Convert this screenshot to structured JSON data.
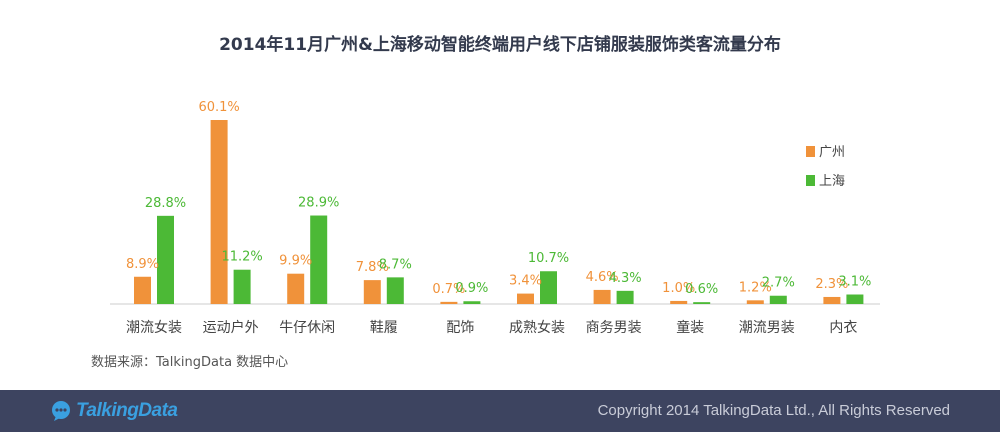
{
  "chart_data": {
    "type": "bar",
    "title": "2014年11月广州&上海移动智能终端用户线下店铺服装服饰类客流量分布",
    "categories": [
      "潮流女装",
      "运动户外",
      "牛仔休闲",
      "鞋履",
      "配饰",
      "成熟女装",
      "商务男装",
      "童装",
      "潮流男装",
      "内衣"
    ],
    "series": [
      {
        "name": "广州",
        "color": "#f0923a",
        "values": [
          8.9,
          60.1,
          9.9,
          7.8,
          0.7,
          3.4,
          4.6,
          1.0,
          1.2,
          2.3
        ],
        "labels": [
          "8.9%",
          "60.1%",
          "9.9%",
          "7.8%",
          "0.7%",
          "3.4%",
          "4.6%",
          "1.0%",
          "1.2%",
          "2.3%"
        ]
      },
      {
        "name": "上海",
        "color": "#4cb936",
        "values": [
          28.8,
          11.2,
          28.9,
          8.7,
          0.9,
          10.7,
          4.3,
          0.6,
          2.7,
          3.1
        ],
        "labels": [
          "28.8%",
          "11.2%",
          "28.9%",
          "8.7%",
          "0.9%",
          "10.7%",
          "4.3%",
          "0.6%",
          "2.7%",
          "3.1%"
        ]
      }
    ],
    "ylim": [
      0,
      60.1
    ],
    "grid": false,
    "legend_position": "right"
  },
  "source": "数据来源：TalkingData 数据中心",
  "footer": {
    "logo_text": "TalkingData",
    "copyright": "Copyright 2014 TalkingData Ltd., All Rights Reserved"
  },
  "colors": {
    "footer_bg": "#3d4460",
    "baseline": "#cccccc",
    "guangzhou": "#f0923a",
    "shanghai": "#4cb936"
  },
  "icons": {
    "logo": "speech-bubble-logo-icon"
  }
}
